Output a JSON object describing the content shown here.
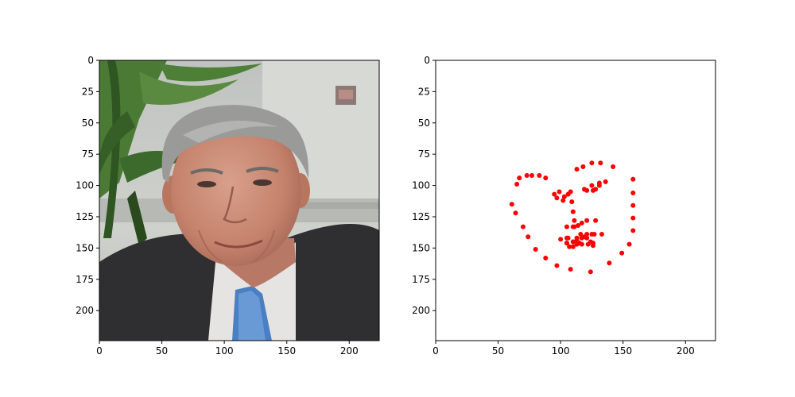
{
  "chart_data": [
    {
      "type": "image",
      "xlim": [
        0,
        224
      ],
      "ylim": [
        224,
        0
      ],
      "x_ticks": [
        0,
        50,
        100,
        150,
        200
      ],
      "y_ticks": [
        0,
        25,
        50,
        75,
        100,
        125,
        150,
        175,
        200
      ],
      "image_description": "photo of an older man with white hair in a dark suit and blue tie, potted palm plant at left",
      "image_colors": {
        "wall": "#c9ccc7",
        "plant": "#3f6b2e",
        "hair": "#9a9a98",
        "skin": "#c98b76",
        "suit": "#2f2e30",
        "shirt": "#e8e6e4",
        "tie": "#4a7fc4"
      }
    },
    {
      "type": "scatter",
      "xlim": [
        0,
        224
      ],
      "ylim": [
        224,
        0
      ],
      "x_ticks": [
        0,
        50,
        100,
        150,
        200
      ],
      "y_ticks": [
        0,
        25,
        50,
        75,
        100,
        125,
        150,
        175,
        200
      ],
      "marker_color": "#ff0000",
      "points": [
        [
          61,
          115
        ],
        [
          64,
          122
        ],
        [
          70,
          133
        ],
        [
          74,
          141
        ],
        [
          80,
          151
        ],
        [
          88,
          158
        ],
        [
          97,
          164
        ],
        [
          108,
          167
        ],
        [
          124,
          169
        ],
        [
          139,
          162
        ],
        [
          149,
          154
        ],
        [
          155,
          147
        ],
        [
          158,
          136
        ],
        [
          158,
          126
        ],
        [
          158,
          116
        ],
        [
          158,
          106
        ],
        [
          158,
          95
        ],
        [
          65,
          99
        ],
        [
          67,
          94
        ],
        [
          73,
          92
        ],
        [
          77,
          92
        ],
        [
          83,
          92
        ],
        [
          88,
          94
        ],
        [
          113,
          87
        ],
        [
          118,
          85
        ],
        [
          125,
          82
        ],
        [
          132,
          82
        ],
        [
          142,
          85
        ],
        [
          108,
          105
        ],
        [
          109,
          113
        ],
        [
          110,
          121
        ],
        [
          111,
          128
        ],
        [
          111,
          133
        ],
        [
          100,
          143
        ],
        [
          106,
          142
        ],
        [
          105,
          146
        ],
        [
          110,
          145
        ],
        [
          113,
          142
        ],
        [
          116,
          139
        ],
        [
          119,
          141
        ],
        [
          121,
          142
        ],
        [
          124,
          145
        ],
        [
          126,
          146
        ],
        [
          99,
          105
        ],
        [
          95,
          107
        ],
        [
          97,
          110
        ],
        [
          103,
          109
        ],
        [
          106,
          107
        ],
        [
          102,
          112
        ],
        [
          119,
          103
        ],
        [
          121,
          104
        ],
        [
          125,
          100
        ],
        [
          126,
          104
        ],
        [
          131,
          98
        ],
        [
          136,
          97
        ],
        [
          131,
          100
        ],
        [
          128,
          103
        ],
        [
          105,
          133
        ],
        [
          110,
          133
        ],
        [
          114,
          132
        ],
        [
          117,
          130
        ],
        [
          121,
          128
        ],
        [
          128,
          128
        ],
        [
          105,
          142
        ],
        [
          110,
          145
        ],
        [
          113,
          144
        ],
        [
          117,
          142
        ],
        [
          121,
          139
        ],
        [
          125,
          139
        ],
        [
          127,
          139
        ],
        [
          133,
          139
        ],
        [
          126,
          148
        ],
        [
          122,
          147
        ],
        [
          117,
          147
        ],
        [
          113,
          147
        ],
        [
          110,
          149
        ],
        [
          107,
          149
        ],
        [
          105,
          146
        ],
        [
          115,
          146
        ]
      ]
    }
  ]
}
